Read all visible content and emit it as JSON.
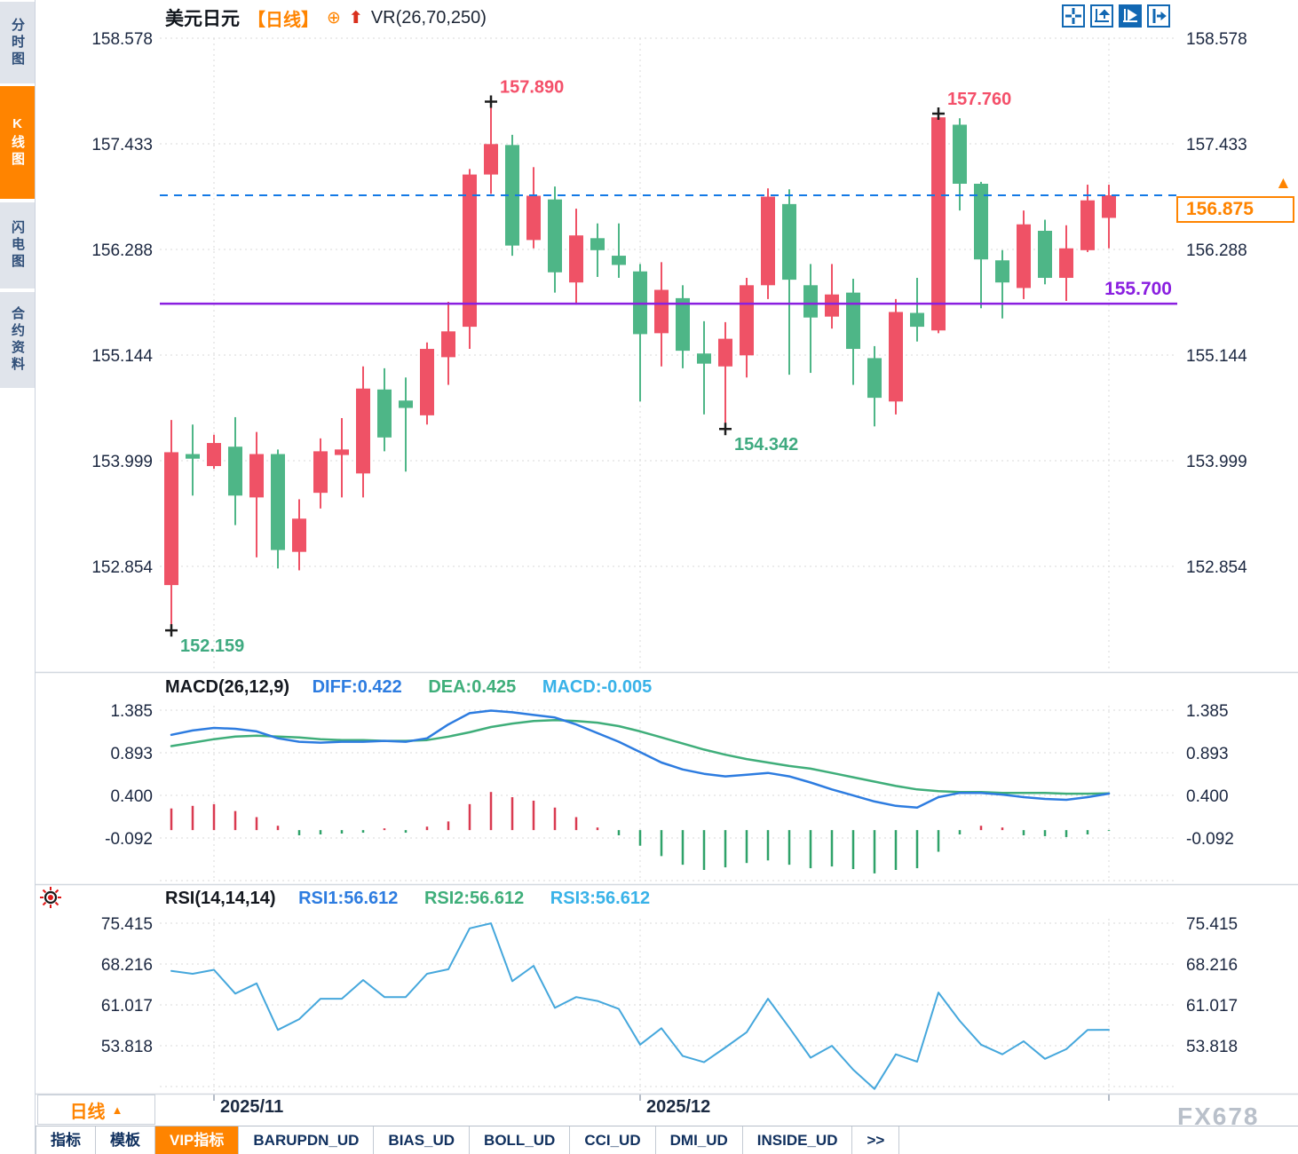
{
  "header": {
    "symbol": "美元日元",
    "period_tag": "【日线】",
    "vr_label": "VR(26,70,250)"
  },
  "glyphs": {
    "circle_plus": "⊕",
    "up_arrow": "⬆",
    "up_triangle": "▲"
  },
  "sidebar": {
    "items": [
      {
        "label": "分时图",
        "active": false
      },
      {
        "label": "K线图",
        "active": true
      },
      {
        "label": "闪电图",
        "active": false
      },
      {
        "label": "合约资料",
        "active": false
      }
    ]
  },
  "price_box": {
    "value": "156.875"
  },
  "bottom_bar": {
    "period_button": {
      "label": "日线",
      "arrow": "▲"
    },
    "tabs": [
      {
        "label": "指标",
        "active": false
      },
      {
        "label": "模板",
        "active": false
      },
      {
        "label": "VIP指标",
        "active": true
      },
      {
        "label": "BARUPDN_UD",
        "active": false
      },
      {
        "label": "BIAS_UD",
        "active": false
      },
      {
        "label": "BOLL_UD",
        "active": false
      },
      {
        "label": "CCI_UD",
        "active": false
      },
      {
        "label": "DMI_UD",
        "active": false
      },
      {
        "label": "INSIDE_UD",
        "active": false
      },
      {
        "label": ">>",
        "active": false
      }
    ]
  },
  "watermark": "FX678",
  "colors": {
    "up": "#ef5266",
    "down": "#4eb687",
    "hist_up": "#d93a50",
    "hist_down": "#2fa269",
    "current_line": "#1379e6",
    "support_line": "#8a1fe0",
    "high_label": "#f4506a",
    "low_label": "#3faa80",
    "diff": "#2d7ce0",
    "dea": "#3fae7a",
    "macd_val": "#38b2e8",
    "rsi_line": "#45a7dc",
    "accent": "#ff8400",
    "tick_text": "#1b2740",
    "grid": "#dadada"
  },
  "chart_data": [
    {
      "type": "candlestick",
      "title": "美元日元 日线",
      "y_ticks": [
        "158.578",
        "157.433",
        "156.288",
        "155.144",
        "153.999",
        "152.854"
      ],
      "x_labels": [
        {
          "label": "2025/11",
          "index": 2
        },
        {
          "label": "2025/12",
          "index": 22
        }
      ],
      "v_gridline_indices": [
        2,
        22,
        44
      ],
      "current_price": {
        "value": 156.875,
        "label": "156.875"
      },
      "horizontal_line": {
        "value": 155.7,
        "label": "155.700"
      },
      "annotations": [
        {
          "type": "high",
          "index": 15,
          "label": "157.890",
          "price": 157.89
        },
        {
          "type": "high",
          "index": 36,
          "label": "157.760",
          "price": 157.76
        },
        {
          "type": "low",
          "index": 0,
          "label": "152.159",
          "price": 152.159
        },
        {
          "type": "low",
          "index": 26,
          "label": "154.342",
          "price": 154.342
        }
      ],
      "candles": [
        [
          152.65,
          154.44,
          152.159,
          154.09
        ],
        [
          154.07,
          154.39,
          153.62,
          154.02
        ],
        [
          153.94,
          154.28,
          153.91,
          154.19
        ],
        [
          154.15,
          154.47,
          153.3,
          153.62
        ],
        [
          153.6,
          154.31,
          152.95,
          154.07
        ],
        [
          154.07,
          154.12,
          152.83,
          153.03
        ],
        [
          153.01,
          153.58,
          152.81,
          153.37
        ],
        [
          153.65,
          154.24,
          153.48,
          154.1
        ],
        [
          154.06,
          154.46,
          153.6,
          154.12
        ],
        [
          153.86,
          155.02,
          153.6,
          154.78
        ],
        [
          154.77,
          155.0,
          154.1,
          154.25
        ],
        [
          154.65,
          154.9,
          153.88,
          154.57
        ],
        [
          154.49,
          155.28,
          154.39,
          155.21
        ],
        [
          155.12,
          155.72,
          154.82,
          155.4
        ],
        [
          155.45,
          157.16,
          155.21,
          157.1
        ],
        [
          157.1,
          157.89,
          156.89,
          157.43
        ],
        [
          157.42,
          157.53,
          156.22,
          156.33
        ],
        [
          156.39,
          157.18,
          156.3,
          156.87
        ],
        [
          156.83,
          156.97,
          155.82,
          156.04
        ],
        [
          155.93,
          156.73,
          155.69,
          156.44
        ],
        [
          156.41,
          156.57,
          155.99,
          156.28
        ],
        [
          156.22,
          156.57,
          155.98,
          156.12
        ],
        [
          156.05,
          156.13,
          154.64,
          155.37
        ],
        [
          155.38,
          156.15,
          155.02,
          155.85
        ],
        [
          155.76,
          155.9,
          155.0,
          155.19
        ],
        [
          155.16,
          155.51,
          154.5,
          155.05
        ],
        [
          155.02,
          155.5,
          154.342,
          155.32
        ],
        [
          155.14,
          155.98,
          154.9,
          155.9
        ],
        [
          155.9,
          156.95,
          155.75,
          156.86
        ],
        [
          156.78,
          156.94,
          154.93,
          155.96
        ],
        [
          155.9,
          156.13,
          154.95,
          155.55
        ],
        [
          155.56,
          156.13,
          155.43,
          155.8
        ],
        [
          155.82,
          155.97,
          154.82,
          155.21
        ],
        [
          155.11,
          155.24,
          154.37,
          154.68
        ],
        [
          154.64,
          155.75,
          154.5,
          155.61
        ],
        [
          155.6,
          155.98,
          155.29,
          155.45
        ],
        [
          155.41,
          157.76,
          155.38,
          157.72
        ],
        [
          157.64,
          157.71,
          156.71,
          157.0
        ],
        [
          157.0,
          157.02,
          155.65,
          156.18
        ],
        [
          156.17,
          156.28,
          155.54,
          155.93
        ],
        [
          155.87,
          156.71,
          155.75,
          156.56
        ],
        [
          156.49,
          156.61,
          155.91,
          155.98
        ],
        [
          155.98,
          156.55,
          155.73,
          156.3
        ],
        [
          156.28,
          156.99,
          156.26,
          156.82
        ],
        [
          156.63,
          156.99,
          156.3,
          156.875
        ]
      ]
    },
    {
      "type": "bar",
      "title": "MACD(26,12,9)",
      "legend": [
        "DIFF:0.422",
        "DEA:0.425",
        "MACD:-0.005"
      ],
      "y_ticks": [
        "1.385",
        "0.893",
        "0.400",
        "-0.092"
      ],
      "series": [
        {
          "name": "DIFF",
          "values": [
            1.1,
            1.15,
            1.18,
            1.17,
            1.14,
            1.06,
            1.02,
            1.01,
            1.02,
            1.02,
            1.03,
            1.02,
            1.06,
            1.22,
            1.35,
            1.38,
            1.36,
            1.33,
            1.3,
            1.22,
            1.12,
            1.02,
            0.9,
            0.78,
            0.7,
            0.65,
            0.62,
            0.64,
            0.66,
            0.62,
            0.55,
            0.47,
            0.4,
            0.33,
            0.28,
            0.26,
            0.38,
            0.43,
            0.43,
            0.41,
            0.38,
            0.36,
            0.35,
            0.38,
            0.422
          ]
        },
        {
          "name": "DEA",
          "values": [
            0.97,
            1.01,
            1.05,
            1.08,
            1.09,
            1.08,
            1.07,
            1.05,
            1.04,
            1.04,
            1.03,
            1.03,
            1.04,
            1.08,
            1.13,
            1.19,
            1.23,
            1.26,
            1.27,
            1.26,
            1.24,
            1.2,
            1.14,
            1.07,
            1.0,
            0.93,
            0.87,
            0.82,
            0.78,
            0.74,
            0.71,
            0.66,
            0.61,
            0.56,
            0.51,
            0.47,
            0.45,
            0.44,
            0.44,
            0.43,
            0.43,
            0.43,
            0.42,
            0.42,
            0.425
          ]
        },
        {
          "name": "HIST",
          "values": [
            0.25,
            0.28,
            0.3,
            0.22,
            0.15,
            0.05,
            -0.06,
            -0.05,
            -0.04,
            -0.03,
            0.02,
            -0.03,
            0.04,
            0.1,
            0.3,
            0.44,
            0.38,
            0.34,
            0.26,
            0.15,
            0.03,
            -0.06,
            -0.18,
            -0.3,
            -0.4,
            -0.46,
            -0.43,
            -0.38,
            -0.35,
            -0.4,
            -0.44,
            -0.42,
            -0.45,
            -0.5,
            -0.46,
            -0.44,
            -0.25,
            -0.05,
            0.05,
            0.03,
            -0.06,
            -0.07,
            -0.08,
            -0.05,
            -0.01
          ]
        }
      ]
    },
    {
      "type": "line",
      "title": "RSI(14,14,14)",
      "legend": [
        "RSI1:56.612",
        "RSI2:56.612",
        "RSI3:56.612"
      ],
      "y_ticks": [
        "75.415",
        "68.216",
        "61.017",
        "53.818"
      ],
      "series": [
        {
          "name": "RSI",
          "values": [
            67.0,
            66.5,
            67.2,
            63.0,
            64.8,
            56.6,
            58.5,
            62.1,
            62.1,
            65.4,
            62.4,
            62.4,
            66.5,
            67.3,
            74.5,
            75.4,
            65.2,
            67.9,
            60.5,
            62.4,
            61.7,
            60.3,
            54.0,
            56.9,
            52.0,
            50.9,
            53.5,
            56.2,
            62.1,
            57.0,
            51.7,
            53.8,
            49.6,
            46.2,
            52.3,
            51.0,
            63.2,
            58.2,
            54.0,
            52.3,
            54.6,
            51.5,
            53.2,
            56.6,
            56.612
          ]
        }
      ]
    }
  ]
}
